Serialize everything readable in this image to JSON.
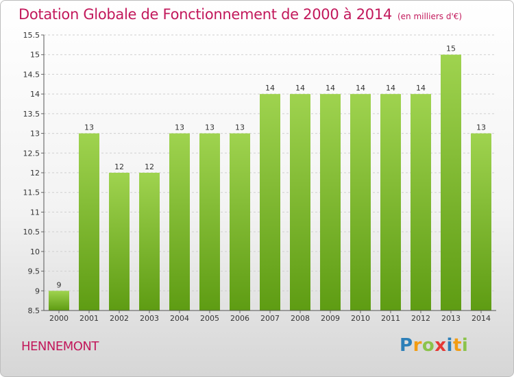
{
  "title": "Dotation Globale de Fonctionnement de 2000 à 2014",
  "subtitle": "(en milliers d'€)",
  "place": "HENNEMONT",
  "logo": {
    "text": "Proxiti",
    "letters": [
      {
        "ch": "P",
        "color": "#2c7fb8"
      },
      {
        "ch": "r",
        "color": "#f39c12"
      },
      {
        "ch": "o",
        "color": "#8bc34a"
      },
      {
        "ch": "x",
        "color": "#e53935"
      },
      {
        "ch": "i",
        "color": "#2c7fb8"
      },
      {
        "ch": "t",
        "color": "#f39c12"
      },
      {
        "ch": "i",
        "color": "#8bc34a"
      }
    ]
  },
  "colors": {
    "title": "#c2185b",
    "bar_top": "#9fd34f",
    "bar_bottom": "#5e9c13",
    "grid": "#cfcfcf",
    "axis_text": "#333333"
  },
  "chart_data": {
    "type": "bar",
    "categories": [
      "2000",
      "2001",
      "2002",
      "2003",
      "2004",
      "2005",
      "2006",
      "2007",
      "2008",
      "2009",
      "2010",
      "2011",
      "2012",
      "2013",
      "2014"
    ],
    "values": [
      9,
      13,
      12,
      12,
      13,
      13,
      13,
      14,
      14,
      14,
      14,
      14,
      14,
      15,
      13
    ],
    "labels": [
      "9",
      "13",
      "12",
      "12",
      "13",
      "13",
      "13",
      "14",
      "14",
      "14",
      "14",
      "14",
      "14",
      "15",
      "13"
    ],
    "ylim": [
      8.5,
      15.5
    ],
    "yticks": [
      8.5,
      9,
      9.5,
      10,
      10.5,
      11,
      11.5,
      12,
      12.5,
      13,
      13.5,
      14,
      14.5,
      15,
      15.5
    ],
    "ytick_labels": [
      "8.5",
      "9",
      "9.5",
      "10",
      "10.5",
      "11",
      "11.5",
      "12",
      "12.5",
      "13",
      "13.5",
      "14",
      "14.5",
      "15",
      "15.5"
    ],
    "grid": true
  }
}
